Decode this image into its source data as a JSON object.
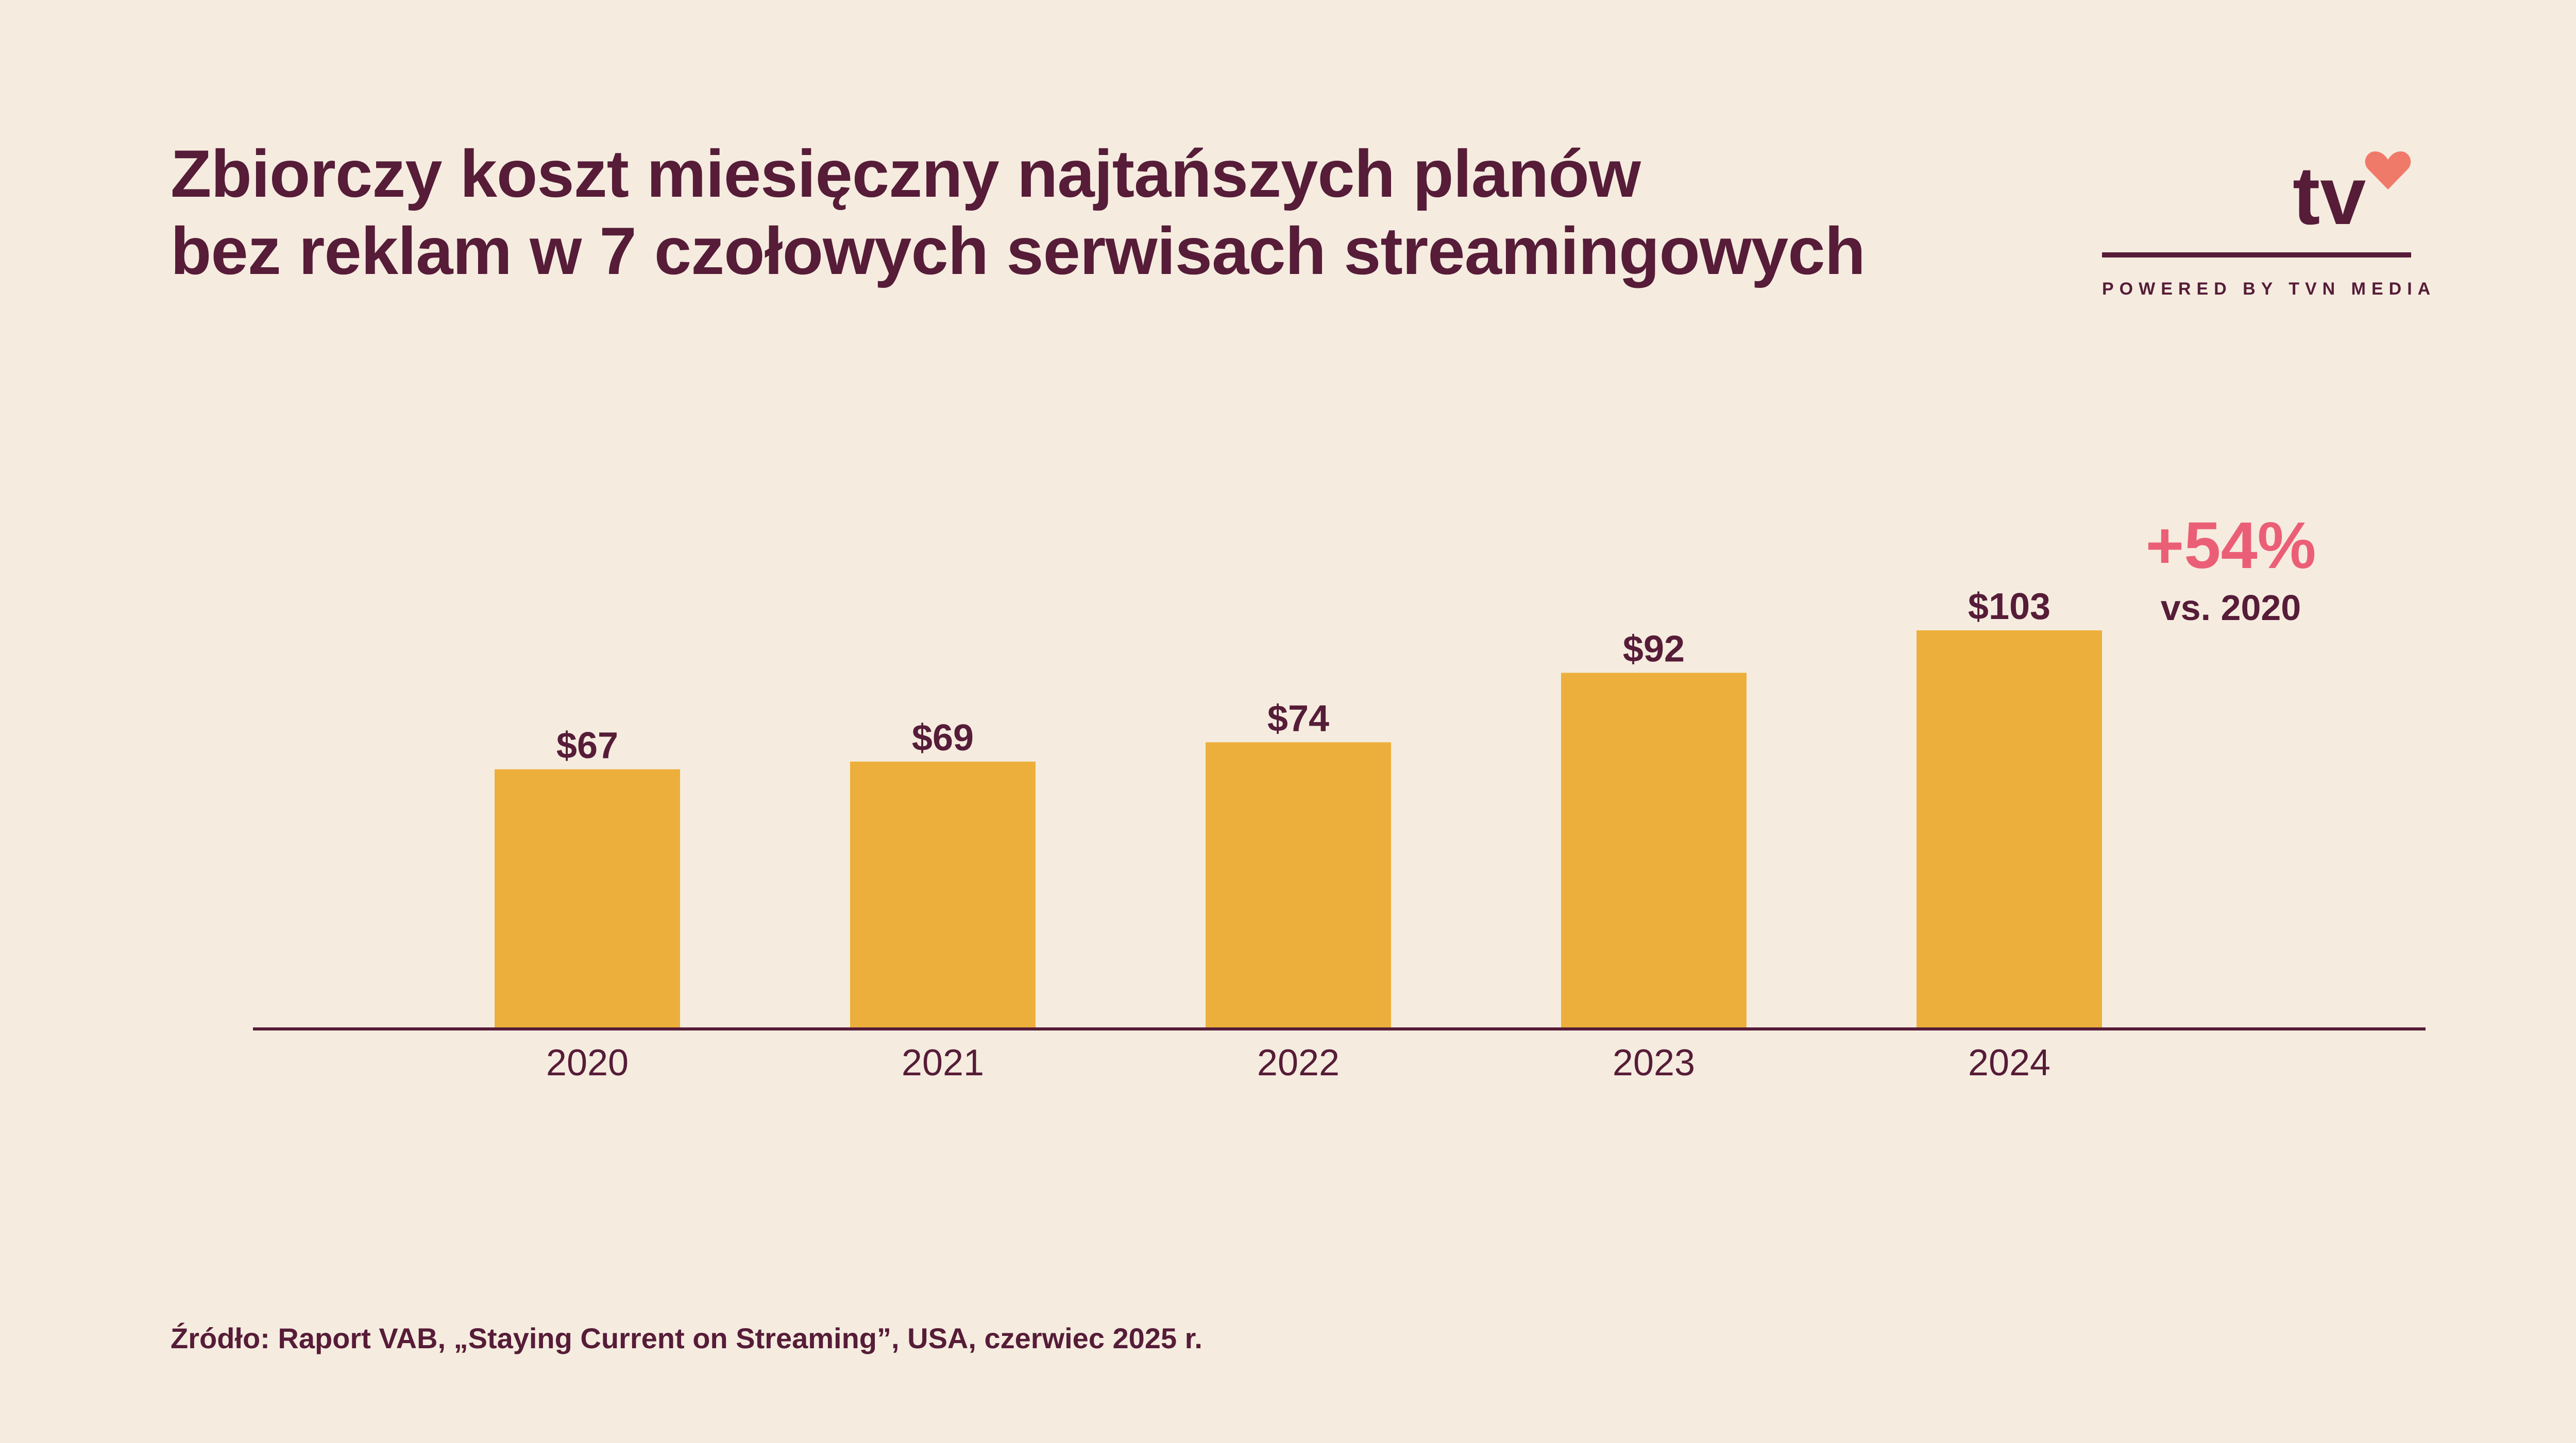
{
  "header": {
    "title_line1": "Zbiorczy koszt miesięczny najtańszych planów",
    "title_line2": "bez reklam w 7 czołowych serwisach streamingowych"
  },
  "logo": {
    "text": "tv",
    "tagline": "POWERED BY TVN MEDIA",
    "icon": "heart-icon",
    "heart_color": "#F07A6A"
  },
  "annotation": {
    "change": "+54%",
    "reference": "vs. 2020",
    "color": "#EB5F76"
  },
  "source": "Źródło: Raport VAB, „Staying Current on Streaming”, USA, czerwiec 2025 r.",
  "colors": {
    "background": "#F5ECDF",
    "bar": "#EDAF3B",
    "text": "#561C38"
  },
  "chart_data": {
    "type": "bar",
    "title": "Zbiorczy koszt miesięczny najtańszych planów bez reklam w 7 czołowych serwisach streamingowych",
    "xlabel": "",
    "ylabel": "",
    "categories": [
      "2020",
      "2021",
      "2022",
      "2023",
      "2024"
    ],
    "values": [
      67,
      69,
      74,
      92,
      103
    ],
    "data_labels": [
      "$67",
      "$69",
      "$74",
      "$92",
      "$103"
    ],
    "ylim": [
      0,
      103
    ],
    "grid": false,
    "legend": "none",
    "y_axis_visible": false
  }
}
